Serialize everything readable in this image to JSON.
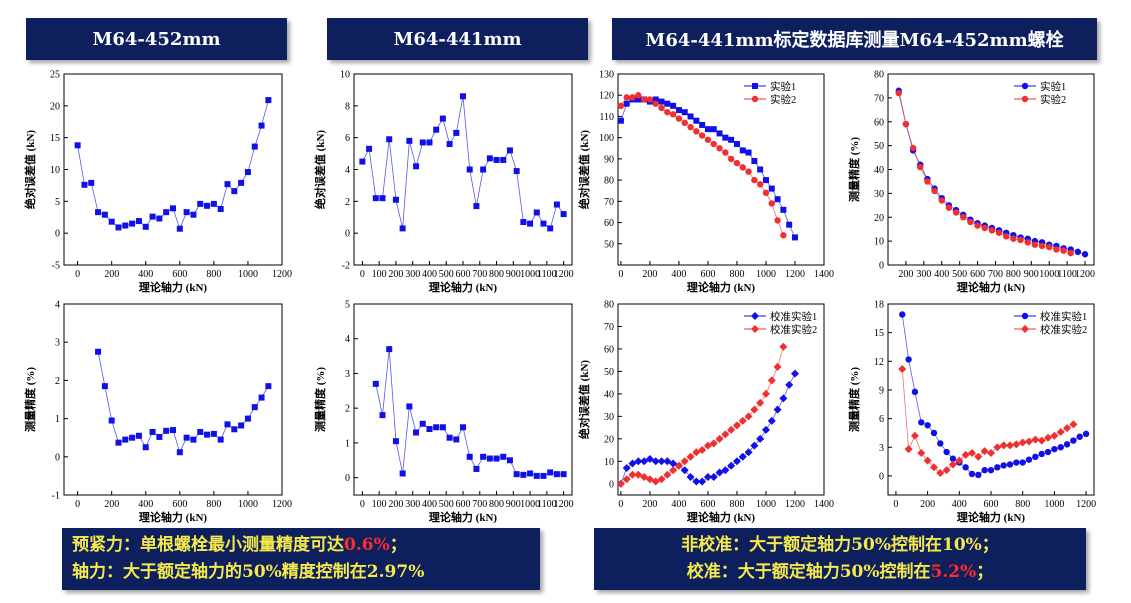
{
  "banners": {
    "left": "M64-452mm",
    "middle": "M64-441mm",
    "right": "M64-441mm标定数据库测量M64-452mm螺栓"
  },
  "summary_left": {
    "line1_prefix": "预紧力：单根螺栓最小测量精度可达",
    "line1_highlight": "0.6%",
    "line1_suffix": "；",
    "line2": "轴力：大于额定轴力的50%精度控制在2.97%"
  },
  "summary_right": {
    "line1": "非校准：大于额定轴力50%控制在10%；",
    "line2_prefix": "校准：大于额定轴力50%控制在",
    "line2_highlight": "5.2%",
    "line2_suffix": "；"
  },
  "colors": {
    "banner_bg": "#0d1f5c",
    "summary_text": "#f5e94c",
    "highlight": "#ff2a2a",
    "blue": "#1010e8",
    "red": "#f03030"
  },
  "chart_data": [
    {
      "id": "c1",
      "type": "line",
      "marker": "square",
      "xlabel": "理论轴力 (kN)",
      "ylabel": "绝对误差值 (kN)",
      "xlim": [
        -80,
        1200
      ],
      "ylim": [
        -5,
        25
      ],
      "xticks": [
        0,
        200,
        400,
        600,
        800,
        1000,
        1200
      ],
      "yticks": [
        -5,
        0,
        5,
        10,
        15,
        20,
        25
      ],
      "series": [
        {
          "name": "",
          "color": "#1010e8",
          "x": [
            0,
            40,
            80,
            120,
            160,
            200,
            240,
            280,
            320,
            360,
            400,
            440,
            480,
            520,
            560,
            600,
            640,
            680,
            720,
            760,
            800,
            840,
            880,
            920,
            960,
            1000,
            1040,
            1080,
            1120
          ],
          "y": [
            13.8,
            7.6,
            7.9,
            3.3,
            2.9,
            1.8,
            0.9,
            1.2,
            1.5,
            1.9,
            1.0,
            2.6,
            2.3,
            3.3,
            3.9,
            0.7,
            3.3,
            2.9,
            4.6,
            4.3,
            4.6,
            3.8,
            7.7,
            6.6,
            7.9,
            9.6,
            13.6,
            16.9,
            20.9
          ]
        }
      ]
    },
    {
      "id": "c2",
      "type": "line",
      "marker": "square",
      "xlabel": "理论轴力 (kN)",
      "ylabel": "绝对误差值 (kN)",
      "xlim": [
        -50,
        1250
      ],
      "ylim": [
        -2,
        10
      ],
      "xticks": [
        0,
        100,
        200,
        300,
        400,
        500,
        600,
        700,
        800,
        900,
        1000,
        1100,
        1200
      ],
      "yticks": [
        -2,
        0,
        2,
        4,
        6,
        8,
        10
      ],
      "series": [
        {
          "name": "",
          "color": "#1010e8",
          "x": [
            0,
            40,
            80,
            120,
            160,
            200,
            240,
            280,
            320,
            360,
            400,
            440,
            480,
            520,
            560,
            600,
            640,
            680,
            720,
            760,
            800,
            840,
            880,
            920,
            960,
            1000,
            1040,
            1080,
            1120,
            1160,
            1200
          ],
          "y": [
            4.5,
            5.3,
            2.2,
            2.2,
            5.9,
            2.1,
            0.3,
            5.8,
            4.2,
            5.7,
            5.7,
            6.5,
            7.2,
            5.6,
            6.3,
            8.6,
            4.0,
            1.7,
            4.0,
            4.7,
            4.6,
            4.6,
            5.2,
            3.9,
            0.7,
            0.6,
            1.3,
            0.6,
            0.3,
            1.8,
            1.2
          ]
        }
      ]
    },
    {
      "id": "c3",
      "type": "line",
      "marker": "mixed",
      "xlabel": "理论轴力 (kN)",
      "ylabel": "绝对误差值 (kN)",
      "xlim": [
        -20,
        1400
      ],
      "ylim": [
        40,
        130
      ],
      "xticks": [
        0,
        200,
        400,
        600,
        800,
        1000,
        1200,
        1400
      ],
      "yticks": [
        50,
        60,
        70,
        80,
        90,
        100,
        110,
        120,
        130
      ],
      "legend": "top-right",
      "series": [
        {
          "name": "实验1",
          "color": "#1010e8",
          "marker": "square",
          "x": [
            0,
            40,
            80,
            120,
            160,
            200,
            240,
            280,
            320,
            360,
            400,
            440,
            480,
            520,
            560,
            600,
            640,
            680,
            720,
            760,
            800,
            840,
            880,
            920,
            960,
            1000,
            1040,
            1080,
            1120,
            1160,
            1200
          ],
          "y": [
            108,
            116,
            118,
            118,
            118,
            117,
            118,
            117,
            116,
            115,
            113,
            112,
            110,
            108,
            106,
            104,
            104,
            102,
            100,
            99,
            97,
            94,
            93,
            89,
            85,
            80,
            76,
            71,
            66,
            59,
            53
          ]
        },
        {
          "name": "实验2",
          "color": "#f03030",
          "marker": "circle",
          "x": [
            0,
            40,
            80,
            120,
            160,
            200,
            240,
            280,
            320,
            360,
            400,
            440,
            480,
            520,
            560,
            600,
            640,
            680,
            720,
            760,
            800,
            840,
            880,
            920,
            960,
            1000,
            1040,
            1080,
            1120
          ],
          "y": [
            115,
            119,
            119,
            120,
            118,
            118,
            116,
            114,
            112,
            111,
            109,
            107,
            105,
            103,
            101,
            99,
            97,
            95,
            93,
            90,
            88,
            86,
            84,
            80,
            78,
            74,
            69,
            61,
            54
          ]
        }
      ]
    },
    {
      "id": "c4",
      "type": "line",
      "marker": "circle",
      "xlabel": "理论轴力 (kN)",
      "ylabel": "测量精度 (%)",
      "xlim": [
        100,
        1250
      ],
      "ylim": [
        0,
        80
      ],
      "xticks": [
        200,
        300,
        400,
        500,
        600,
        700,
        800,
        900,
        1000,
        1100,
        1200
      ],
      "yticks": [
        0,
        10,
        20,
        30,
        40,
        50,
        60,
        70,
        80
      ],
      "legend": "top-right",
      "series": [
        {
          "name": "实验1",
          "color": "#1010e8",
          "marker": "circle",
          "x": [
            160,
            200,
            240,
            280,
            320,
            360,
            400,
            440,
            480,
            520,
            560,
            600,
            640,
            680,
            720,
            760,
            800,
            840,
            880,
            920,
            960,
            1000,
            1040,
            1080,
            1120,
            1160,
            1200
          ],
          "y": [
            73,
            59,
            48,
            42,
            36,
            32,
            28,
            25,
            23,
            21,
            19,
            17.5,
            16.5,
            15.5,
            14.5,
            13.5,
            12.5,
            11.5,
            11,
            10,
            9.5,
            8.5,
            8,
            7,
            6.5,
            5.5,
            4.5
          ]
        },
        {
          "name": "实验2",
          "color": "#f03030",
          "marker": "circle",
          "x": [
            160,
            200,
            240,
            280,
            320,
            360,
            400,
            440,
            480,
            520,
            560,
            600,
            640,
            680,
            720,
            760,
            800,
            840,
            880,
            920,
            960,
            1000,
            1040,
            1080,
            1120
          ],
          "y": [
            72,
            59,
            49,
            41,
            35,
            31,
            27,
            24,
            22,
            20,
            18,
            16.5,
            15.5,
            14.5,
            13.5,
            12,
            11,
            10.5,
            9.5,
            8.5,
            8,
            7.5,
            6.5,
            6,
            5
          ]
        }
      ]
    },
    {
      "id": "c5",
      "type": "line",
      "marker": "square",
      "xlabel": "理论轴力 (kN)",
      "ylabel": "测量精度 (%)",
      "xlim": [
        -80,
        1200
      ],
      "ylim": [
        -1,
        4
      ],
      "xticks": [
        0,
        200,
        400,
        600,
        800,
        1000,
        1200
      ],
      "yticks": [
        -1,
        0,
        1,
        2,
        3,
        4
      ],
      "series": [
        {
          "name": "",
          "color": "#1010e8",
          "x": [
            120,
            160,
            200,
            240,
            280,
            320,
            360,
            400,
            440,
            480,
            520,
            560,
            600,
            640,
            680,
            720,
            760,
            800,
            840,
            880,
            920,
            960,
            1000,
            1040,
            1080,
            1120
          ],
          "y": [
            2.75,
            1.85,
            0.95,
            0.37,
            0.45,
            0.5,
            0.55,
            0.25,
            0.65,
            0.52,
            0.68,
            0.7,
            0.12,
            0.5,
            0.45,
            0.65,
            0.58,
            0.6,
            0.45,
            0.85,
            0.72,
            0.82,
            1.0,
            1.3,
            1.55,
            1.85
          ]
        }
      ]
    },
    {
      "id": "c6",
      "type": "line",
      "marker": "square",
      "xlabel": "理论轴力 (kN)",
      "ylabel": "测量精度 (%)",
      "xlim": [
        -50,
        1250
      ],
      "ylim": [
        -0.5,
        5
      ],
      "xticks": [
        0,
        100,
        200,
        300,
        400,
        500,
        600,
        700,
        800,
        900,
        1000,
        1100,
        1200
      ],
      "yticks": [
        0,
        1,
        2,
        3,
        4,
        5
      ],
      "series": [
        {
          "name": "",
          "color": "#1010e8",
          "x": [
            80,
            120,
            160,
            200,
            240,
            280,
            320,
            360,
            400,
            440,
            480,
            520,
            560,
            600,
            640,
            680,
            720,
            760,
            800,
            840,
            880,
            920,
            960,
            1000,
            1040,
            1080,
            1120,
            1160,
            1200
          ],
          "y": [
            2.7,
            1.8,
            3.7,
            1.05,
            0.12,
            2.05,
            1.3,
            1.55,
            1.4,
            1.45,
            1.45,
            1.15,
            1.1,
            1.45,
            0.6,
            0.25,
            0.6,
            0.55,
            0.55,
            0.6,
            0.5,
            0.1,
            0.08,
            0.12,
            0.05,
            0.05,
            0.15,
            0.1,
            0.1
          ]
        }
      ]
    },
    {
      "id": "c7",
      "type": "line",
      "marker": "mixed",
      "xlabel": "理论轴力 (kN)",
      "ylabel": "绝对误差值 (kN)",
      "xlim": [
        -20,
        1400
      ],
      "ylim": [
        -5,
        80
      ],
      "xticks": [
        0,
        200,
        400,
        600,
        800,
        1000,
        1200,
        1400
      ],
      "yticks": [
        0,
        10,
        20,
        30,
        40,
        50,
        60,
        70,
        80
      ],
      "legend": "top-right",
      "series": [
        {
          "name": "校准实验1",
          "color": "#1010e8",
          "marker": "diamond",
          "x": [
            0,
            40,
            80,
            120,
            160,
            200,
            240,
            280,
            320,
            360,
            400,
            440,
            480,
            520,
            560,
            600,
            640,
            680,
            720,
            760,
            800,
            840,
            880,
            920,
            960,
            1000,
            1040,
            1080,
            1120,
            1160,
            1200
          ],
          "y": [
            0,
            7,
            9,
            10,
            10,
            11,
            10,
            10,
            10,
            9,
            8,
            6,
            3,
            1,
            1,
            3,
            3,
            5,
            6,
            8,
            10,
            12,
            14,
            17,
            20,
            24,
            28,
            33,
            38,
            44,
            49
          ]
        },
        {
          "name": "校准实验2",
          "color": "#f03030",
          "marker": "diamond",
          "x": [
            0,
            40,
            80,
            120,
            160,
            200,
            240,
            280,
            320,
            360,
            400,
            440,
            480,
            520,
            560,
            600,
            640,
            680,
            720,
            760,
            800,
            840,
            880,
            920,
            960,
            1000,
            1040,
            1080,
            1120
          ],
          "y": [
            0,
            2,
            4,
            4,
            3,
            2,
            1,
            2,
            4,
            6,
            8,
            10,
            12,
            14,
            15,
            17,
            18,
            20,
            22,
            24,
            26,
            28,
            30,
            33,
            36,
            40,
            46,
            52,
            61
          ]
        }
      ]
    },
    {
      "id": "c8",
      "type": "line",
      "marker": "mixed",
      "xlabel": "理论轴力 (kN)",
      "ylabel": "测量精度 (%)",
      "xlim": [
        -50,
        1250
      ],
      "ylim": [
        -2,
        18
      ],
      "xticks": [
        0,
        200,
        400,
        600,
        800,
        1000,
        1200
      ],
      "yticks": [
        0,
        3,
        6,
        9,
        12,
        15,
        18
      ],
      "legend": "top-right",
      "series": [
        {
          "name": "校准实验1",
          "color": "#1010e8",
          "marker": "circle",
          "x": [
            40,
            80,
            120,
            160,
            200,
            240,
            280,
            320,
            360,
            400,
            440,
            480,
            520,
            560,
            600,
            640,
            680,
            720,
            760,
            800,
            840,
            880,
            920,
            960,
            1000,
            1040,
            1080,
            1120,
            1160,
            1200
          ],
          "y": [
            16.9,
            12.2,
            8.8,
            5.6,
            5.3,
            4.5,
            3.4,
            2.5,
            1.8,
            1.4,
            0.9,
            0.2,
            0.1,
            0.6,
            0.6,
            0.9,
            1.1,
            1.2,
            1.4,
            1.4,
            1.7,
            2.0,
            2.3,
            2.5,
            2.8,
            3.0,
            3.3,
            3.7,
            4.1,
            4.4
          ]
        },
        {
          "name": "校准实验2",
          "color": "#f03030",
          "marker": "diamond",
          "x": [
            40,
            80,
            120,
            160,
            200,
            240,
            280,
            320,
            360,
            400,
            440,
            480,
            520,
            560,
            600,
            640,
            680,
            720,
            760,
            800,
            840,
            880,
            920,
            960,
            1000,
            1040,
            1080,
            1120
          ],
          "y": [
            11.2,
            2.8,
            4.2,
            2.4,
            1.6,
            0.9,
            0.3,
            0.6,
            1.2,
            1.6,
            2.2,
            2.4,
            2.0,
            2.6,
            2.4,
            3.0,
            3.2,
            3.2,
            3.3,
            3.5,
            3.6,
            3.8,
            3.7,
            4.0,
            4.2,
            4.6,
            5.0,
            5.4
          ]
        }
      ]
    }
  ]
}
